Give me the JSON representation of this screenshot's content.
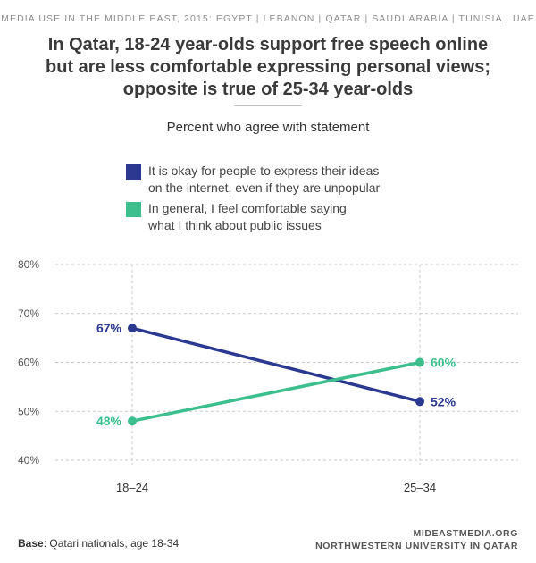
{
  "kicker": "MEDIA USE IN THE MIDDLE EAST, 2015: EGYPT | LEBANON | QATAR | SAUDI ARABIA | TUNISIA | UAE",
  "title_lines": [
    "In Qatar, 18-24 year-olds support free speech online",
    "but are less comfortable expressing personal views;",
    "opposite is true of 25-34 year-olds"
  ],
  "subtitle": "Percent who agree with statement",
  "footer": {
    "base_label": "Base",
    "base_text": ": Qatari nationals, age 18-34",
    "source_line1": "MIDEASTMEDIA.ORG",
    "source_line2": "NORTHWESTERN UNIVERSITY IN QATAR"
  },
  "colors": {
    "series1": "#2b3990",
    "series2": "#3cbf8d",
    "grid": "#c8c8c8",
    "tick": "#555555"
  },
  "chart_data": {
    "type": "line",
    "title": "In Qatar, 18-24 year-olds support free speech online but are less comfortable expressing personal views; opposite is true of 25-34 year-olds",
    "subtitle": "Percent who agree with statement",
    "categories": [
      "18–24",
      "25–34"
    ],
    "ylim": [
      40,
      80
    ],
    "yticks": [
      "40%",
      "50%",
      "60%",
      "70%",
      "80%"
    ],
    "grid": true,
    "legend_position": "top",
    "series": [
      {
        "name": "It is okay for people to express their ideas on the internet, even if they are unpopular",
        "legend_lines": [
          "It is okay for people to express their ideas",
          "on the internet, even if they are unpopular"
        ],
        "values": [
          67,
          52
        ],
        "labels": [
          "67%",
          "52%"
        ],
        "color": "#2b3990"
      },
      {
        "name": "In general, I feel comfortable saying what I think about public issues",
        "legend_lines": [
          "In general, I feel comfortable saying",
          "what I think about public issues"
        ],
        "values": [
          48,
          60
        ],
        "labels": [
          "48%",
          "60%"
        ],
        "color": "#3cbf8d"
      }
    ]
  }
}
